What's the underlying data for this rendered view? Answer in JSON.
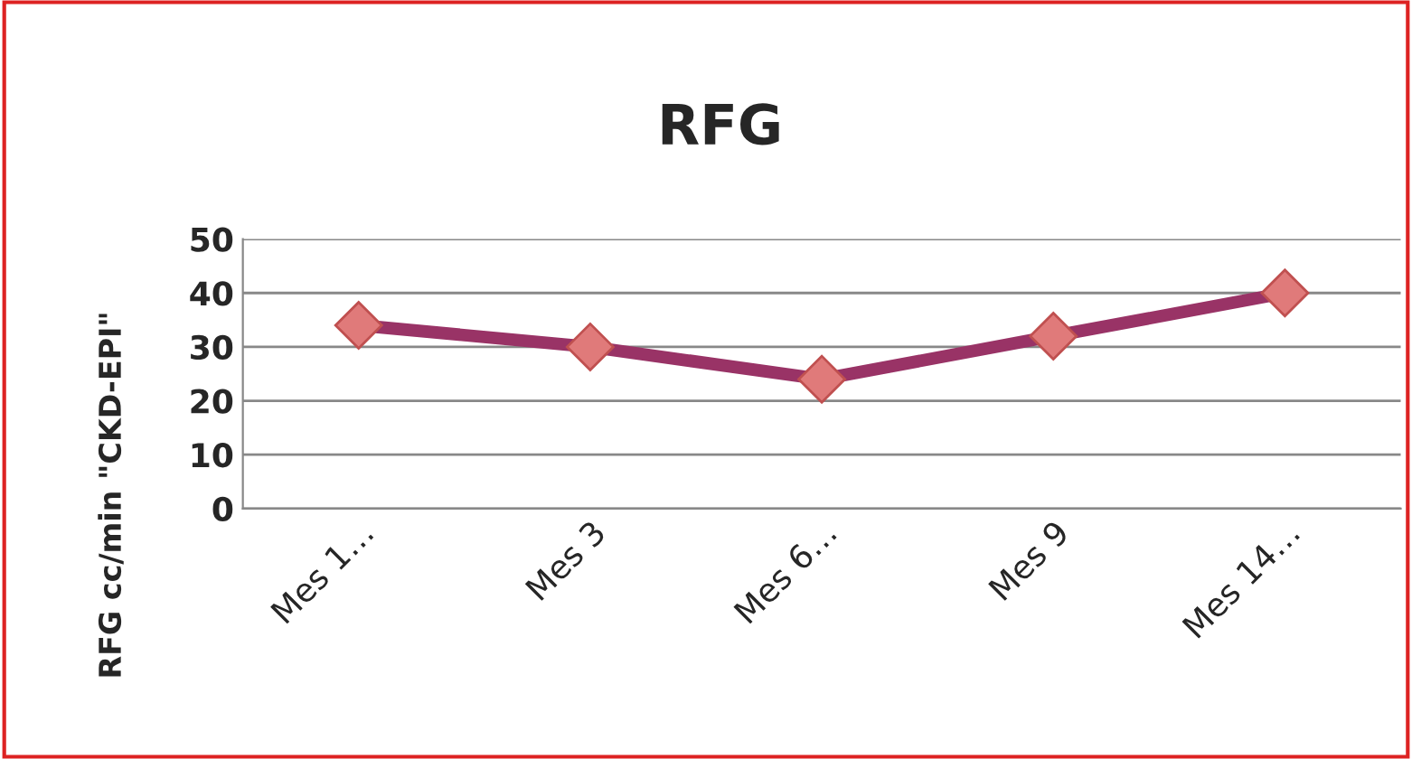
{
  "chart_data": {
    "type": "line",
    "title": "RFG",
    "ylabel": "RFG cc/min \"CKD-EPI\"",
    "categories": [
      "Mes 1…",
      "Mes 3",
      "Mes 6…",
      "Mes 9",
      "Mes 14…"
    ],
    "series": [
      {
        "color": "#993366",
        "colors": [
          "#e07a7a",
          "#e07a7a",
          "#e07a7a",
          "#e07a7a",
          "#e07a7a"
        ],
        "values": [
          34,
          30,
          24,
          32,
          40
        ]
      }
    ],
    "ylim": [
      0,
      50
    ],
    "yticks": [
      0,
      10,
      20,
      30,
      40,
      50
    ],
    "grid": "y",
    "legend": false,
    "marker": "diamond",
    "line_style": "solid"
  }
}
